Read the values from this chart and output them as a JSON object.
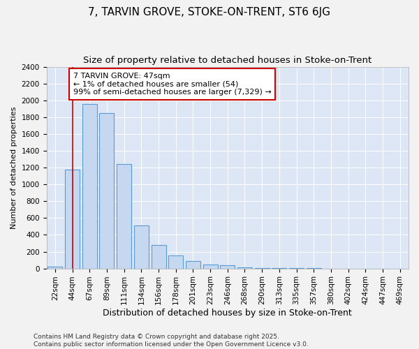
{
  "title": "7, TARVIN GROVE, STOKE-ON-TRENT, ST6 6JG",
  "subtitle": "Size of property relative to detached houses in Stoke-on-Trent",
  "xlabel": "Distribution of detached houses by size in Stoke-on-Trent",
  "ylabel": "Number of detached properties",
  "categories": [
    "22sqm",
    "44sqm",
    "67sqm",
    "89sqm",
    "111sqm",
    "134sqm",
    "156sqm",
    "178sqm",
    "201sqm",
    "223sqm",
    "246sqm",
    "268sqm",
    "290sqm",
    "313sqm",
    "335sqm",
    "357sqm",
    "380sqm",
    "402sqm",
    "424sqm",
    "447sqm",
    "469sqm"
  ],
  "values": [
    25,
    1175,
    1960,
    1850,
    1240,
    515,
    275,
    155,
    90,
    50,
    42,
    10,
    5,
    3,
    2,
    1,
    0,
    0,
    0,
    0,
    0
  ],
  "bar_color": "#c5d8f0",
  "bar_edge_color": "#5b9bd5",
  "background_color": "#dce6f5",
  "grid_color": "#ffffff",
  "fig_background": "#f2f2f2",
  "ylim": [
    0,
    2400
  ],
  "yticks": [
    0,
    200,
    400,
    600,
    800,
    1000,
    1200,
    1400,
    1600,
    1800,
    2000,
    2200,
    2400
  ],
  "redline_x": 1.0,
  "annotation_text": "7 TARVIN GROVE: 47sqm\n← 1% of detached houses are smaller (54)\n99% of semi-detached houses are larger (7,329) →",
  "annotation_box_color": "#ffffff",
  "annotation_box_edge_color": "#cc0000",
  "redline_color": "#cc0000",
  "footer_text": "Contains HM Land Registry data © Crown copyright and database right 2025.\nContains public sector information licensed under the Open Government Licence v3.0.",
  "title_fontsize": 11,
  "subtitle_fontsize": 9.5,
  "xlabel_fontsize": 9,
  "ylabel_fontsize": 8,
  "tick_fontsize": 7.5,
  "annotation_fontsize": 8,
  "footer_fontsize": 6.5
}
